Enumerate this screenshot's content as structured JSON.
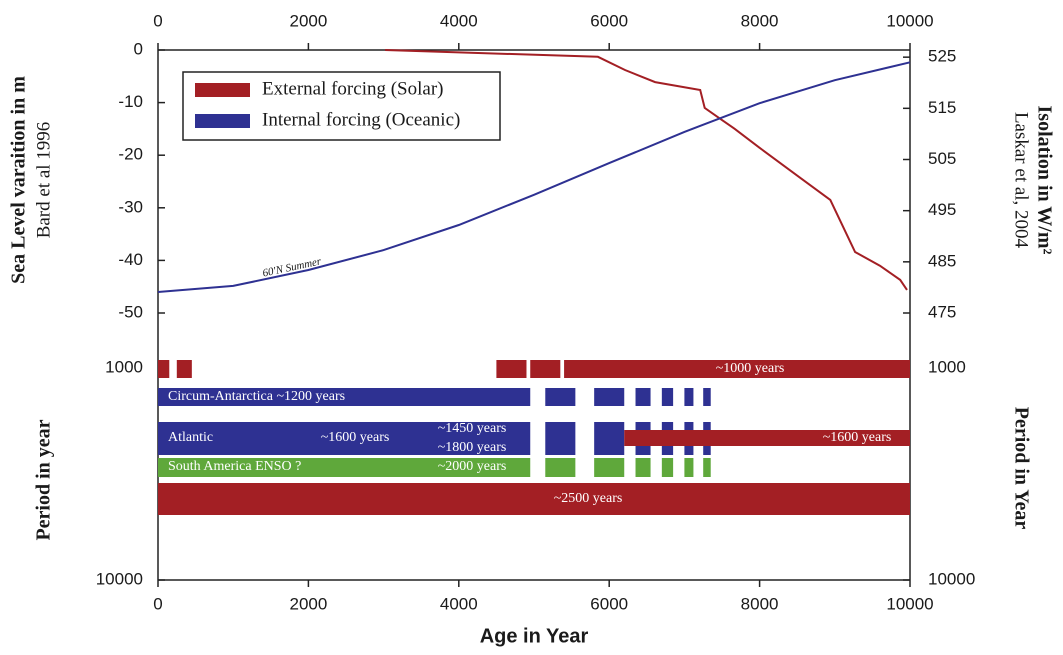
{
  "chart_data": [
    {
      "type": "line",
      "xlim": [
        0,
        10000
      ],
      "xticks": [
        0,
        2000,
        4000,
        6000,
        8000,
        10000
      ],
      "ylim": [
        -50,
        0
      ],
      "yticks": [
        0,
        -10,
        -20,
        -30,
        -40,
        -50
      ],
      "y2lim": [
        475,
        526.4
      ],
      "y2ticks": [
        525,
        515,
        505,
        495,
        485,
        475
      ],
      "ylabel": "Sea Level varaition in m",
      "ysublabel": "Bard et al 1996",
      "y2label": "Isolation in W/m²",
      "y2sublabel": "Laskar et al, 2004",
      "annotation": "60'N Summer",
      "series": [
        {
          "name": "External forcing (Solar)",
          "color": "#a31f24",
          "x": [
            3020,
            5850,
            6210,
            6610,
            7210,
            7270,
            7470,
            7670,
            8000,
            8540,
            8940,
            9270,
            9600,
            9870,
            9960
          ],
          "values": [
            0,
            -1.3,
            -3.8,
            -6.1,
            -7.6,
            -11,
            -13,
            -15,
            -18.6,
            -24.3,
            -28.5,
            -38.4,
            -41,
            -43.7,
            -45.6
          ]
        },
        {
          "name": "Internal forcing (Oceanic)",
          "color": "#2e3192",
          "axis": "y2",
          "x": [
            0,
            1000,
            2000,
            3000,
            4000,
            5000,
            6000,
            7000,
            8000,
            9000,
            10000
          ],
          "values": [
            479.1,
            480.3,
            483.4,
            487.3,
            492.2,
            498.1,
            504.3,
            510.4,
            516,
            520.5,
            524
          ]
        }
      ]
    },
    {
      "type": "timeline",
      "xlim": [
        0,
        10000
      ],
      "xticks": [
        0,
        2000,
        4000,
        6000,
        8000,
        10000
      ],
      "xlabel": "Age in Year",
      "ylim": [
        1000,
        10000
      ],
      "yticks": [
        1000,
        10000
      ],
      "y2ticks": [
        1000,
        10000
      ],
      "ylabel": "Period in year",
      "y2label": "Period in Year",
      "rows": [
        {
          "color": "#a31f24",
          "segments": [
            [
              0,
              150
            ],
            [
              250,
              450
            ],
            [
              4500,
              4900
            ],
            [
              4950,
              5350
            ],
            [
              5400,
              10000
            ]
          ],
          "labels": [
            "~1000 years"
          ]
        },
        {
          "color": "#2e3192",
          "segments": [
            [
              0,
              4950
            ],
            [
              5150,
              5550
            ],
            [
              5800,
              6200
            ],
            [
              6350,
              6550
            ],
            [
              6700,
              6850
            ],
            [
              7000,
              7120
            ],
            [
              7250,
              7350
            ]
          ],
          "labels": [
            "Circum-Antarctica ~1200 years"
          ]
        },
        {
          "color": "#2e3192",
          "segments": [
            [
              0,
              4950
            ],
            [
              5150,
              5550
            ],
            [
              5800,
              6200
            ],
            [
              6350,
              6550
            ],
            [
              6700,
              6850
            ],
            [
              7000,
              7120
            ],
            [
              7250,
              7350
            ]
          ],
          "labels": [
            "Atlantic",
            "~1600 years",
            "~1450 years",
            "~1800 years"
          ]
        },
        {
          "color": "#a31f24",
          "segments": [
            [
              6200,
              10000
            ]
          ],
          "labels": [
            "~1600 years"
          ]
        },
        {
          "color": "#5fa83b",
          "segments": [
            [
              0,
              4950
            ],
            [
              5150,
              5550
            ],
            [
              5800,
              6200
            ],
            [
              6350,
              6550
            ],
            [
              6700,
              6850
            ],
            [
              7000,
              7120
            ],
            [
              7250,
              7350
            ]
          ],
          "labels": [
            "South America ENSO ?",
            "~2000 years"
          ]
        },
        {
          "color": "#a31f24",
          "segments": [
            [
              0,
              10000
            ]
          ],
          "labels": [
            "~2500 years"
          ]
        }
      ]
    }
  ]
}
